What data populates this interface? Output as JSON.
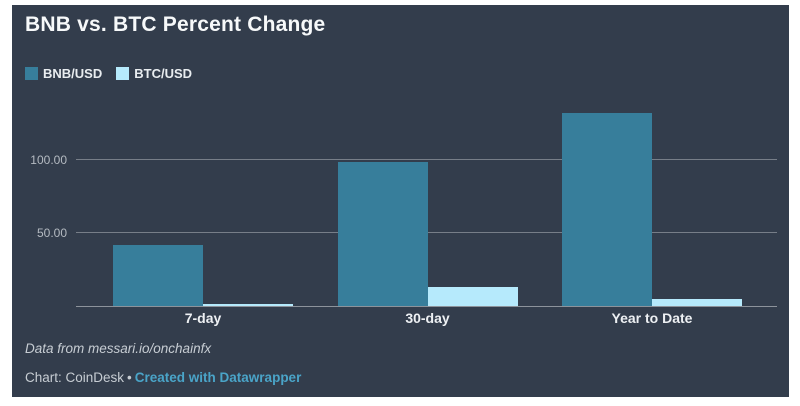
{
  "page": {
    "background": "#ffffff"
  },
  "panel": {
    "background": "#333d4c"
  },
  "header": {
    "title": "BNB vs. BTC Percent Change"
  },
  "legend": {
    "items": [
      {
        "label": "BNB/USD",
        "color": "#377e9b"
      },
      {
        "label": "BTC/USD",
        "color": "#b6eafc"
      }
    ]
  },
  "chart_data": {
    "type": "bar",
    "title": "BNB vs. BTC Percent Change",
    "categories": [
      "7-day",
      "30-day",
      "Year to Date"
    ],
    "series": [
      {
        "name": "BNB/USD",
        "color": "#377e9b",
        "values": [
          42,
          99,
          132
        ]
      },
      {
        "name": "BTC/USD",
        "color": "#b6eafc",
        "values": [
          1.5,
          13,
          4.5
        ]
      }
    ],
    "unit": "percent",
    "ylim": [
      0,
      135
    ],
    "yticks": [
      {
        "value": 50,
        "label": "50.00"
      },
      {
        "value": 100,
        "label": "100.00"
      }
    ],
    "grid": true,
    "legend_position": "top-left",
    "colors": {
      "gridline": "#777e88",
      "baseline": "#8d939b",
      "tick_label": "#b4bac1",
      "category_label": "#edf0f3"
    }
  },
  "footer": {
    "source_note": "Data from messari.io/onchainfx",
    "credit_prefix": "Chart: CoinDesk",
    "credit_separator": "•",
    "credit_link": "Created with Datawrapper",
    "link_color": "#4aa4c8"
  }
}
